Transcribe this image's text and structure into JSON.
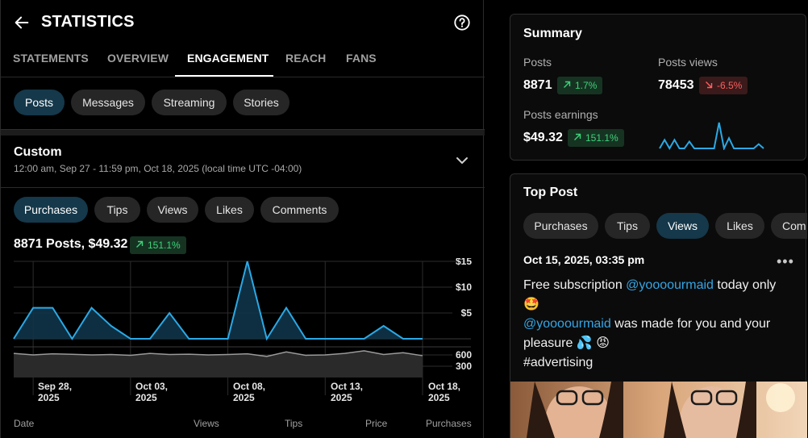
{
  "header": {
    "title": "STATISTICS",
    "back_icon": "arrow-left-icon",
    "help_icon": "question-circle-icon"
  },
  "tabs": [
    {
      "label": "STATEMENTS",
      "active": false
    },
    {
      "label": "OVERVIEW",
      "active": false
    },
    {
      "label": "ENGAGEMENT",
      "active": true
    },
    {
      "label": "REACH",
      "active": false
    },
    {
      "label": "FANS",
      "active": false
    }
  ],
  "type_chips": [
    "Posts",
    "Messages",
    "Streaming",
    "Stories"
  ],
  "range": {
    "title": "Custom",
    "subtitle": "12:00 am, Sep 27 - 11:59 pm, Oct 18, 2025 (local time UTC -04:00)"
  },
  "metric_chips": [
    "Purchases",
    "Tips",
    "Views",
    "Likes",
    "Comments"
  ],
  "metric_summary": {
    "title": "8871 Posts, $49.32",
    "change": "151.1%"
  },
  "chart_data": [
    {
      "type": "area",
      "x": [
        "Sep 27",
        "Sep 28",
        "Sep 29",
        "Sep 30",
        "Oct 01",
        "Oct 02",
        "Oct 03",
        "Oct 04",
        "Oct 05",
        "Oct 06",
        "Oct 07",
        "Oct 08",
        "Oct 09",
        "Oct 10",
        "Oct 11",
        "Oct 12",
        "Oct 13",
        "Oct 14",
        "Oct 15",
        "Oct 16",
        "Oct 17",
        "Oct 18"
      ],
      "values": [
        0,
        6,
        6,
        0,
        6,
        2.5,
        0,
        0,
        5,
        0,
        0,
        0,
        15,
        0,
        6,
        0,
        0,
        0,
        0,
        2.5,
        0,
        0
      ],
      "ytick_labels": [
        "$15",
        "$10",
        "$5"
      ],
      "ytick_values": [
        15,
        10,
        5
      ],
      "ylim": [
        0,
        15
      ],
      "colors": {
        "line": "#2aa9e6",
        "fill": "#0f3448"
      }
    },
    {
      "type": "area",
      "x": [
        "Sep 27",
        "Sep 28",
        "Sep 29",
        "Sep 30",
        "Oct 01",
        "Oct 02",
        "Oct 03",
        "Oct 04",
        "Oct 05",
        "Oct 06",
        "Oct 07",
        "Oct 08",
        "Oct 09",
        "Oct 10",
        "Oct 11",
        "Oct 12",
        "Oct 13",
        "Oct 14",
        "Oct 15",
        "Oct 16",
        "Oct 17",
        "Oct 18"
      ],
      "values": [
        640,
        600,
        630,
        615,
        600,
        610,
        590,
        640,
        610,
        620,
        600,
        610,
        630,
        560,
        680,
        590,
        600,
        640,
        710,
        610,
        660,
        580
      ],
      "ytick_labels": [
        "600",
        "300"
      ],
      "ytick_values": [
        600,
        300
      ],
      "ylim": [
        0,
        900
      ],
      "colors": {
        "line": "#9a9a9a",
        "fill": "#2a2a2a"
      }
    }
  ],
  "x_labels": [
    {
      "line1": "Sep 28,",
      "line2": "2025"
    },
    {
      "line1": "Oct 03,",
      "line2": "2025"
    },
    {
      "line1": "Oct 08,",
      "line2": "2025"
    },
    {
      "line1": "Oct 13,",
      "line2": "2025"
    },
    {
      "line1": "Oct 18,",
      "line2": "2025"
    }
  ],
  "table_columns": [
    "Date",
    "Views",
    "Tips",
    "Price",
    "Purchases"
  ],
  "summary": {
    "title": "Summary",
    "posts": {
      "label": "Posts",
      "value": "8871",
      "change": "1.7%"
    },
    "posts_views": {
      "label": "Posts views",
      "value": "78453",
      "change": "-6.5%"
    },
    "posts_earnings": {
      "label": "Posts earnings",
      "value": "$49.32",
      "change": "151.1%"
    },
    "sparkline": [
      0,
      10,
      0,
      10,
      0,
      0,
      8,
      0,
      0,
      0,
      0,
      0,
      30,
      0,
      12,
      0,
      0,
      0,
      0,
      0,
      5,
      0
    ]
  },
  "top_post": {
    "title": "Top Post",
    "chips": [
      "Purchases",
      "Tips",
      "Views",
      "Likes",
      "Com"
    ],
    "active_chip": "Views",
    "date": "Oct 15, 2025, 03:35 pm",
    "text_1": "Free subscription ",
    "mention_1": "@yoooourmaid",
    "text_2": " today only",
    "emoji_1": "🤩",
    "mention_2": "@yoooourmaid",
    "text_3": " was made for you and your pleasure ",
    "emoji_2": "💦 😡",
    "hashtag": "#advertising"
  },
  "colors": {
    "accent": "#2aa9e6",
    "chip_active": "#15384a",
    "up": "#3ed37a",
    "down": "#ff5f5f"
  }
}
